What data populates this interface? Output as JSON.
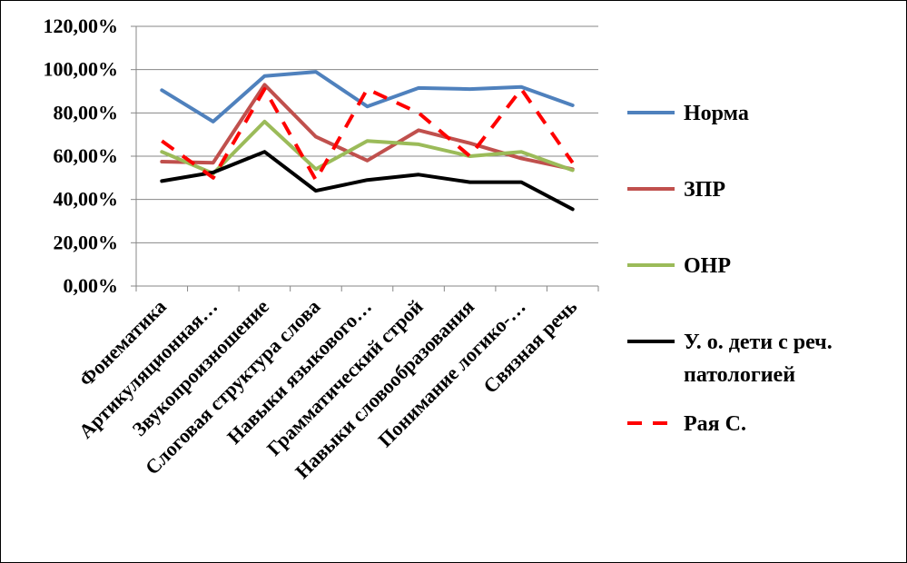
{
  "chart_data": {
    "type": "line",
    "categories": [
      "Фонематика",
      "Артикуляционная…",
      "Звукопроизношение",
      "Слоговая структура слова",
      "Навыки языкового…",
      "Грамматический строй",
      "Навыки словообразования",
      "Понимание логико-…",
      "Связная речь"
    ],
    "ylim": [
      0,
      120
    ],
    "yticks": [
      0,
      20,
      40,
      60,
      80,
      100,
      120
    ],
    "ytick_labels": [
      "0,00%",
      "20,00%",
      "40,00%",
      "60,00%",
      "80,00%",
      "100,00%",
      "120,00%"
    ],
    "grid": true,
    "legend_position": "right",
    "series": [
      {
        "name": "Норма",
        "color": "#4F81BD",
        "dash": "solid",
        "values": [
          90.5,
          76,
          97,
          99,
          83,
          91.5,
          91,
          92,
          83.5
        ]
      },
      {
        "name": "ЗПР",
        "color": "#C0504D",
        "dash": "solid",
        "values": [
          57.5,
          57,
          93,
          69,
          58,
          72,
          66,
          59,
          54
        ]
      },
      {
        "name": "ОНР",
        "color": "#9BBB59",
        "dash": "solid",
        "values": [
          62,
          52,
          76,
          54,
          67,
          65.5,
          60,
          62,
          53.5
        ]
      },
      {
        "name": "У. о. дети с реч. патологией",
        "color": "#000000",
        "dash": "solid",
        "values": [
          48.5,
          52.5,
          62,
          44,
          49,
          51.5,
          48,
          48,
          35.5
        ]
      },
      {
        "name": "Рая С.",
        "color": "#FF0000",
        "dash": "dashed",
        "values": [
          67,
          50,
          91,
          49,
          91,
          80,
          60,
          91,
          57
        ]
      }
    ],
    "legend_lines": [
      [
        "Норма"
      ],
      [
        "ЗПР"
      ],
      [
        "ОНР"
      ],
      [
        "У. о. дети с реч.",
        "патологией"
      ],
      [
        "Рая С."
      ]
    ]
  }
}
